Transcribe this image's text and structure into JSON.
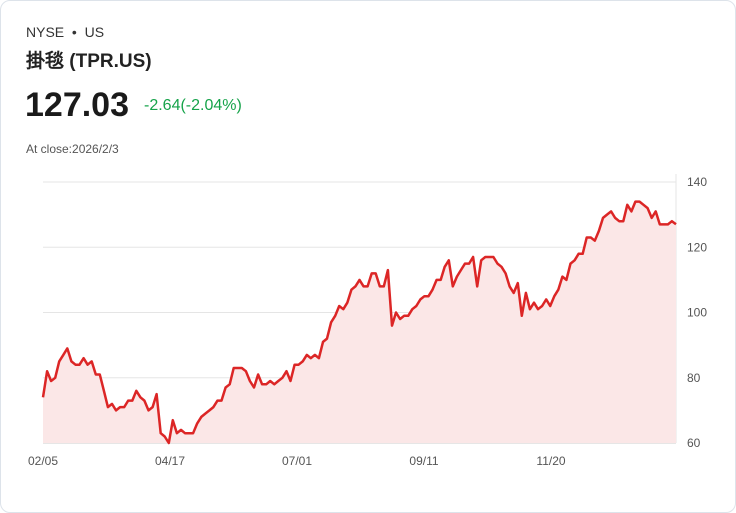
{
  "header": {
    "exchange": "NYSE",
    "dot": "•",
    "market": "US",
    "name": "掛毯 (TPR.US)",
    "price": "127.03",
    "change": "-2.64(-2.04%)",
    "at_close": "At close:2026/2/3"
  },
  "colors": {
    "line": "#dc2626",
    "fill": "#fbe7e7",
    "up_down": "#16a34a"
  },
  "chart_data": {
    "type": "area",
    "title": "",
    "xlabel": "",
    "ylabel": "",
    "ylim": [
      60,
      140
    ],
    "yticks": [
      "60",
      "80",
      "100",
      "120",
      "140"
    ],
    "xticks": [
      "02/05",
      "04/17",
      "07/01",
      "09/11",
      "11/20"
    ],
    "grid": true,
    "values": [
      74,
      82,
      79,
      80,
      85,
      87,
      89,
      85,
      84,
      84,
      86,
      84,
      85,
      81,
      81,
      76,
      71,
      72,
      70,
      71,
      71,
      73,
      73,
      76,
      74,
      73,
      70,
      71,
      75,
      63,
      62,
      60,
      67,
      63,
      64,
      63,
      63,
      63,
      66,
      68,
      69,
      70,
      71,
      73,
      73,
      77,
      78,
      83,
      83,
      83,
      82,
      79,
      77,
      81,
      78,
      78,
      79,
      78,
      79,
      80,
      82,
      79,
      84,
      84,
      85,
      87,
      86,
      87,
      86,
      91,
      92,
      97,
      99,
      102,
      101,
      103,
      107,
      108,
      110,
      108,
      108,
      112,
      112,
      108,
      108,
      113,
      96,
      100,
      98,
      99,
      99,
      101,
      102,
      104,
      105,
      105,
      107,
      110,
      110,
      114,
      116,
      108,
      111,
      113,
      115,
      115,
      117,
      108,
      116,
      117,
      117,
      117,
      115,
      114,
      112,
      108,
      106,
      109,
      99,
      106,
      101,
      103,
      101,
      102,
      104,
      102,
      105,
      107,
      111,
      110,
      115,
      116,
      118,
      118,
      123,
      123,
      122,
      125,
      129,
      130,
      131,
      129,
      128,
      128,
      133,
      131,
      134,
      134,
      133,
      132,
      129,
      131,
      127,
      127,
      127,
      128,
      127.03
    ]
  }
}
